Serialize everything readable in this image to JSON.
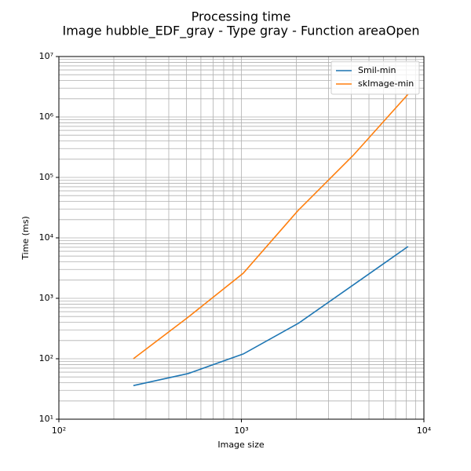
{
  "chart_data": {
    "type": "line",
    "title": "Processing time",
    "subtitle": "Image hubble_EDF_gray - Type gray - Function areaOpen",
    "x_label": "Image size",
    "y_label": "Time (ms)",
    "x": [
      256,
      512,
      1024,
      2048,
      4096,
      8192
    ],
    "series": [
      {
        "name": "Smil-min",
        "color": "#1f77b4",
        "values": [
          36,
          57,
          120,
          384,
          1660,
          7200
        ]
      },
      {
        "name": "skImage-min",
        "color": "#ff7f0e",
        "values": [
          100,
          490,
          2600,
          28500,
          231000,
          2380000
        ]
      }
    ],
    "xlim": [
      100,
      10000
    ],
    "xticks": [
      {
        "value": 100,
        "label": "10²"
      },
      {
        "value": 1000,
        "label": "10³"
      },
      {
        "value": 10000,
        "label": "10⁴"
      }
    ],
    "ylim": [
      10,
      10000000
    ],
    "yticks": [
      {
        "value": 10,
        "label": "10¹"
      },
      {
        "value": 100,
        "label": "10²"
      },
      {
        "value": 1000,
        "label": "10³"
      },
      {
        "value": 10000,
        "label": "10⁴"
      },
      {
        "value": 100000,
        "label": "10⁵"
      },
      {
        "value": 1000000,
        "label": "10⁶"
      },
      {
        "value": 10000000,
        "label": "10⁷"
      }
    ],
    "xscale": "log",
    "yscale": "log",
    "grid": true,
    "legend": "upper right"
  }
}
